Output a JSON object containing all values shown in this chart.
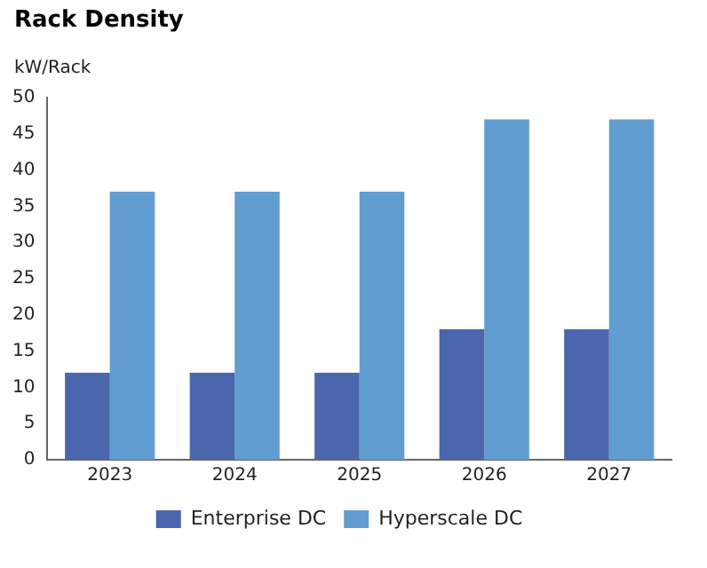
{
  "chart_data": {
    "type": "bar",
    "title": "Rack Density",
    "ylabel": "kW/Rack",
    "categories": [
      "2023",
      "2024",
      "2025",
      "2026",
      "2027"
    ],
    "series": [
      {
        "name": "Enterprise DC",
        "color": "#4a66ac",
        "values": [
          12,
          12,
          12,
          18,
          18
        ]
      },
      {
        "name": "Hyperscale DC",
        "color": "#629dd1",
        "values": [
          37,
          37,
          37,
          47,
          47
        ]
      }
    ],
    "ylim": [
      0,
      50
    ],
    "yticks": [
      0,
      5,
      10,
      15,
      20,
      25,
      30,
      35,
      40,
      45,
      50
    ],
    "grid": false,
    "legend": "bottom"
  }
}
